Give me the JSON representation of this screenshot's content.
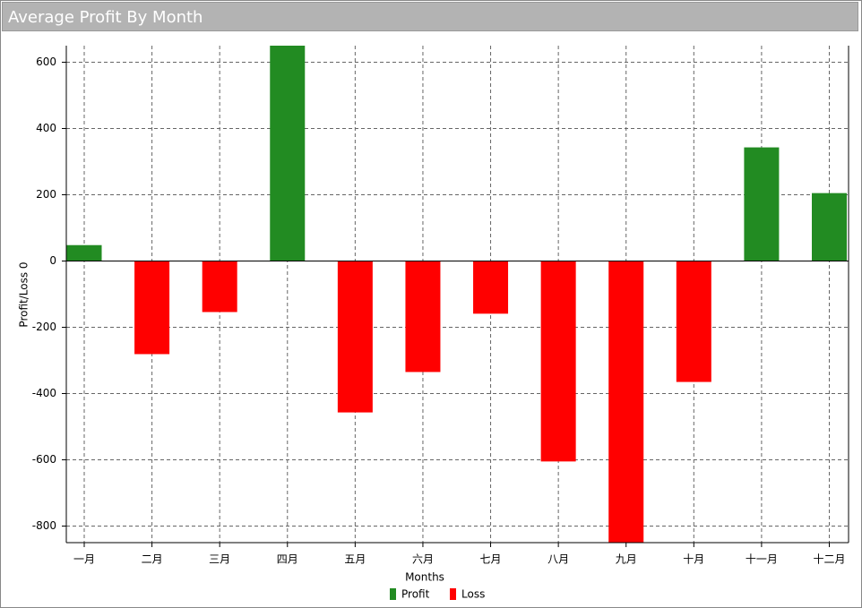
{
  "chart_data": {
    "type": "bar",
    "title": "Average Profit By Month",
    "x_label": "Months",
    "y_label": "Profit/Loss 0",
    "categories": [
      "一月",
      "二月",
      "三月",
      "四月",
      "五月",
      "六月",
      "七月",
      "八月",
      "九月",
      "十月",
      "十一月",
      "十二月"
    ],
    "values": [
      48,
      -281,
      -154,
      650,
      -457,
      -335,
      -159,
      -605,
      -850,
      -365,
      343,
      205
    ],
    "legend": [
      {
        "name": "Profit",
        "color": "#228b22"
      },
      {
        "name": "Loss",
        "color": "#ff0000"
      }
    ],
    "ylim": [
      -850,
      650
    ],
    "yticks": [
      600,
      400,
      200,
      0,
      -200,
      -400,
      -600,
      -800
    ],
    "grid": true
  }
}
